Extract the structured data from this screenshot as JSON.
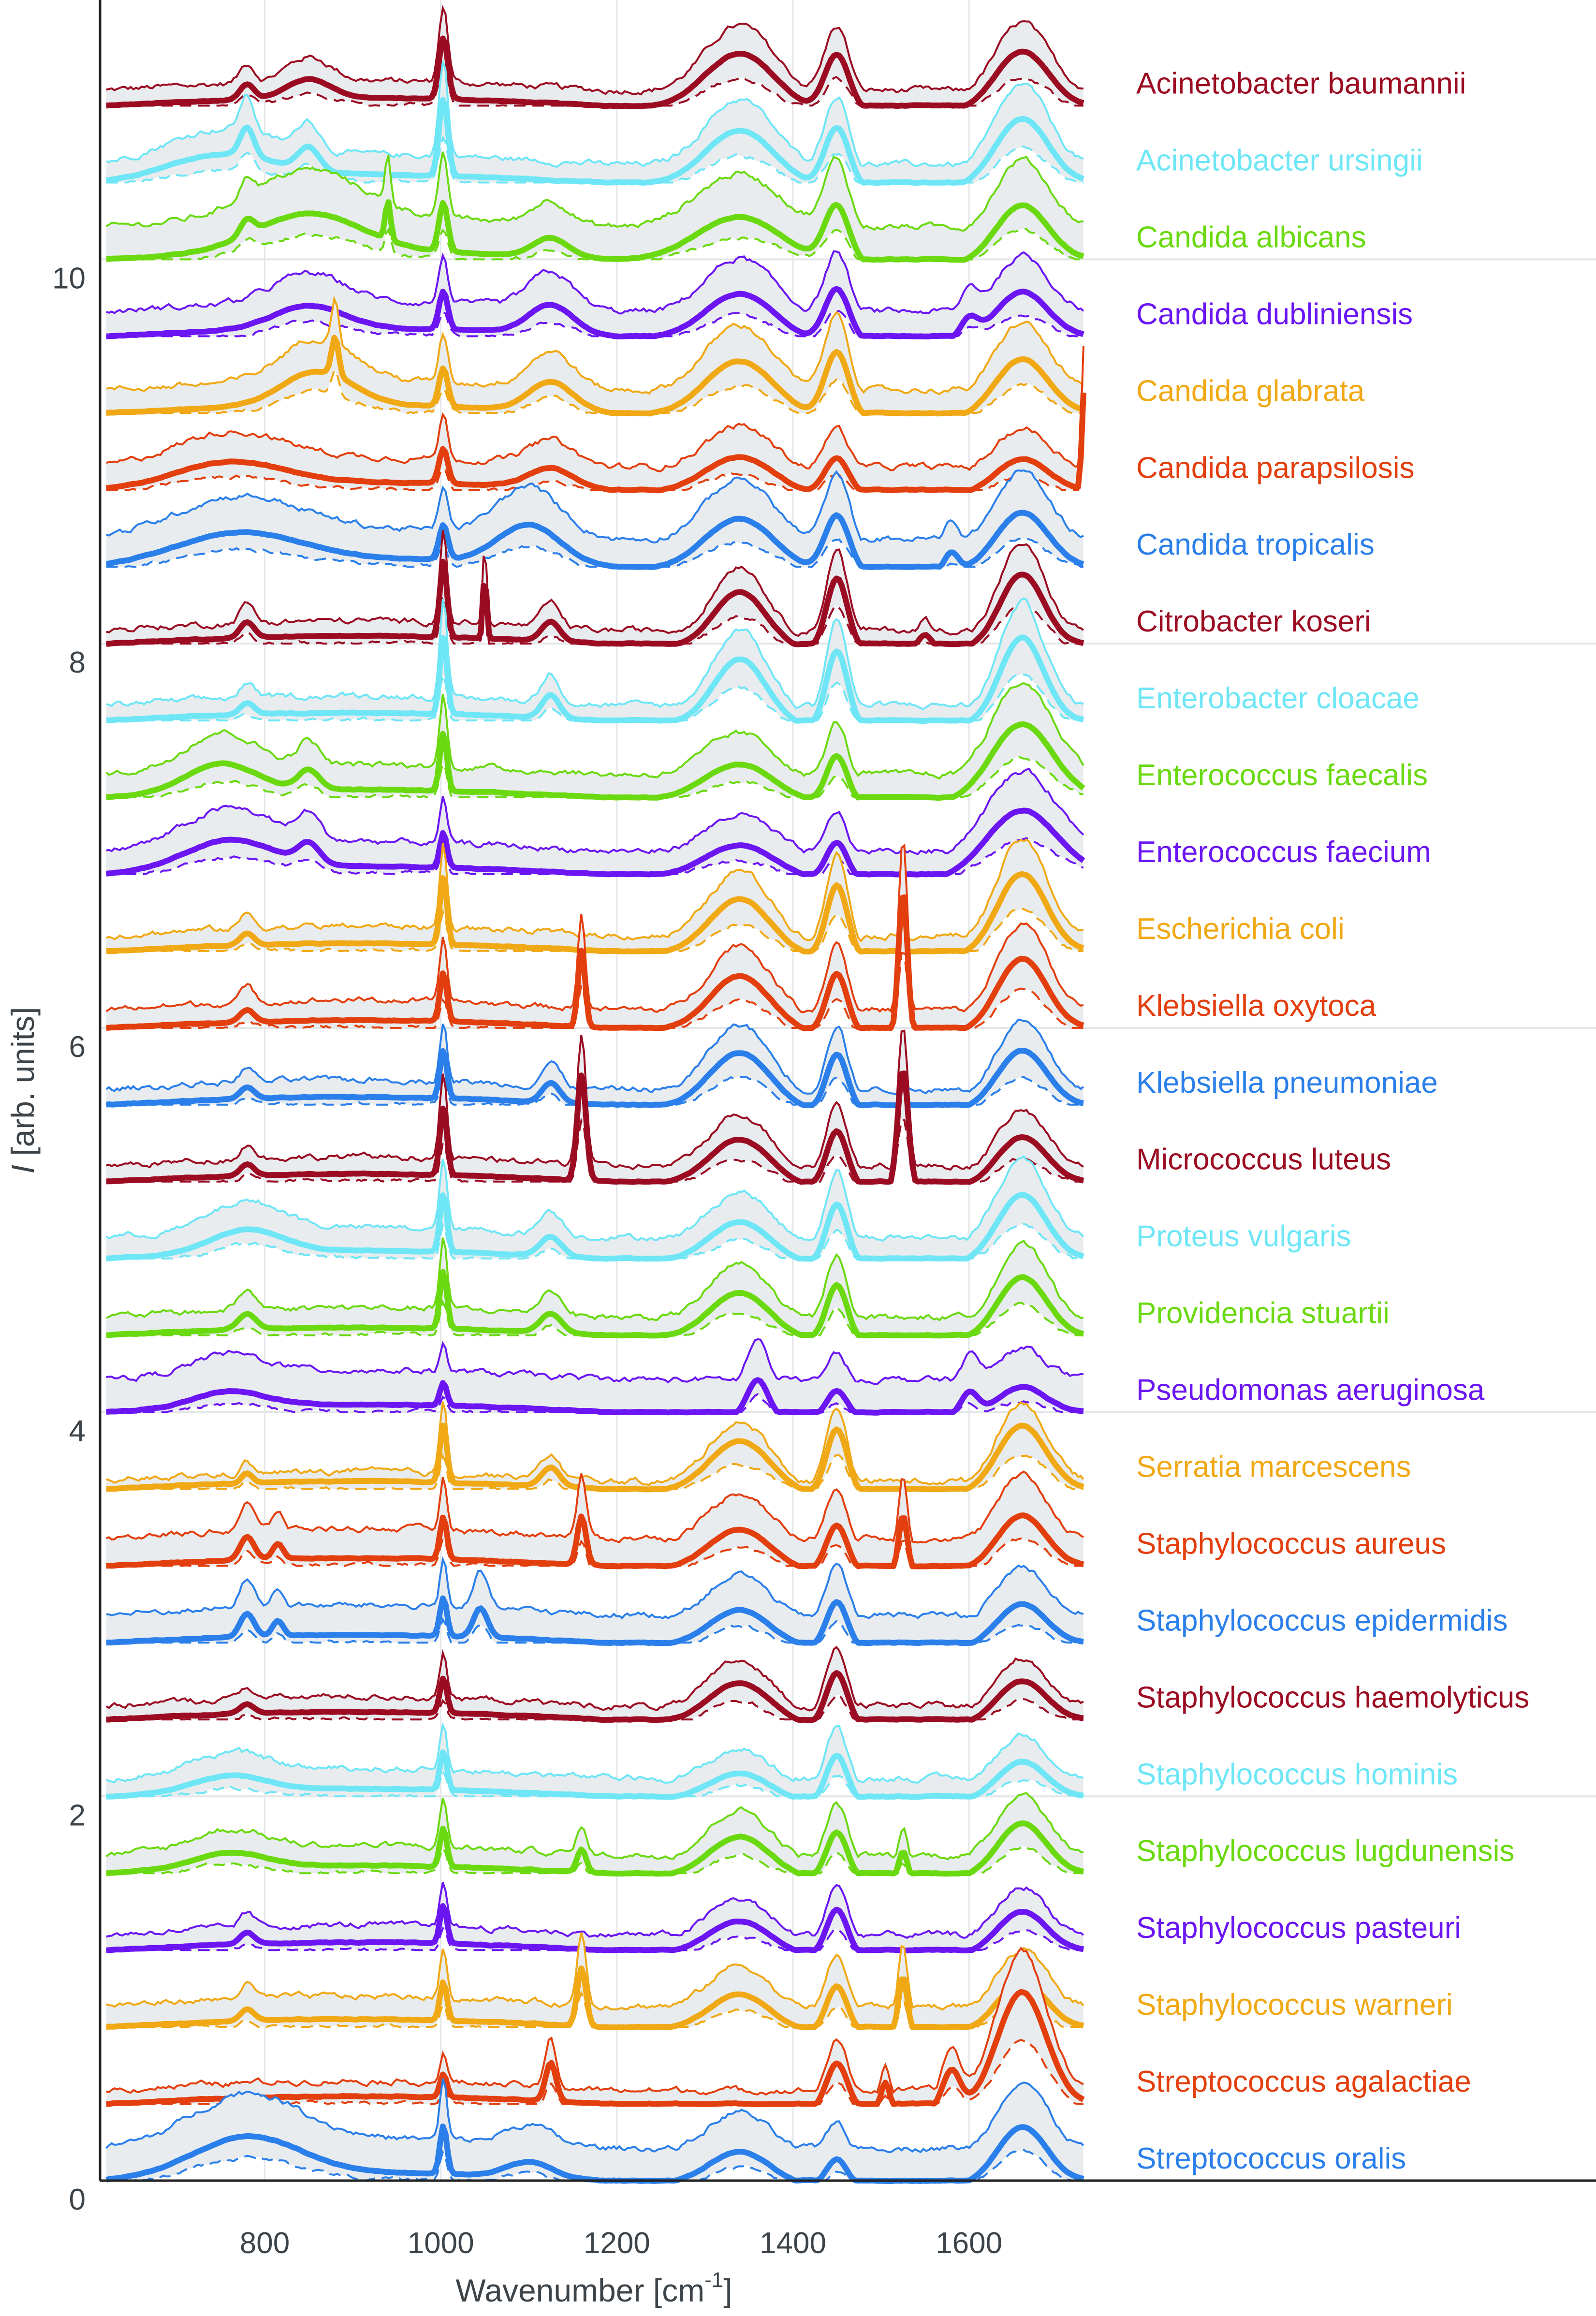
{
  "chart_data": {
    "type": "line",
    "title": "",
    "xlabel": "Wavenumber [cm",
    "xlabel_superscript": "-1",
    "xlabel_suffix": "]",
    "ylabel_italic": "I",
    "ylabel": " [arb. units]",
    "xlim": [
      613,
      1735
    ],
    "ylim": [
      0,
      11.35
    ],
    "xticks": [
      800,
      1000,
      1200,
      1400,
      1600
    ],
    "yticks": [
      0,
      2,
      4,
      6,
      8,
      10
    ],
    "grid": true,
    "legend_position": "right",
    "offset_step": 0.4,
    "band_fill": "#e9ecee",
    "description": "Stacked mean Raman spectra (thick line) with min/max envelope (thin lines, shaded) and lower bound (dashed) per species, vertically offset",
    "series": [
      {
        "name": "Acinetobacter baumannii",
        "color": "#9b0c22",
        "offset": 10.8,
        "spread": 0.12,
        "peaks": [
          [
            780,
            0.08,
            8
          ],
          [
            1003,
            0.32,
            5
          ],
          [
            1340,
            0.3,
            40
          ],
          [
            1450,
            0.3,
            14
          ],
          [
            1660,
            0.3,
            30
          ],
          [
            850,
            0.1,
            25
          ]
        ]
      },
      {
        "name": "Acinetobacter ursingii",
        "color": "#6ee6f6",
        "offset": 10.4,
        "spread": 0.15,
        "peaks": [
          [
            780,
            0.15,
            8
          ],
          [
            850,
            0.12,
            12
          ],
          [
            1003,
            0.4,
            5
          ],
          [
            1340,
            0.3,
            40
          ],
          [
            1450,
            0.32,
            14
          ],
          [
            1660,
            0.35,
            30
          ],
          [
            750,
            0.12,
            60
          ]
        ]
      },
      {
        "name": "Candida albicans",
        "color": "#6ad90f",
        "offset": 10.0,
        "spread": 0.3,
        "peaks": [
          [
            850,
            0.2,
            60
          ],
          [
            780,
            0.08,
            8
          ],
          [
            1003,
            0.25,
            5
          ],
          [
            1125,
            0.1,
            20
          ],
          [
            1340,
            0.25,
            50
          ],
          [
            1450,
            0.3,
            14
          ],
          [
            1660,
            0.3,
            30
          ],
          [
            940,
            0.2,
            3
          ]
        ]
      },
      {
        "name": "Candida dubliniensis",
        "color": "#6b16f2",
        "offset": 9.6,
        "spread": 0.22,
        "peaks": [
          [
            850,
            0.12,
            40
          ],
          [
            1003,
            0.2,
            5
          ],
          [
            1125,
            0.15,
            25
          ],
          [
            1340,
            0.25,
            40
          ],
          [
            1450,
            0.28,
            14
          ],
          [
            1660,
            0.25,
            30
          ],
          [
            1600,
            0.1,
            10
          ]
        ]
      },
      {
        "name": "Candida glabrata",
        "color": "#f0a814",
        "offset": 9.2,
        "spread": 0.2,
        "peaks": [
          [
            860,
            0.18,
            40
          ],
          [
            1003,
            0.2,
            5
          ],
          [
            1125,
            0.15,
            25
          ],
          [
            1340,
            0.3,
            40
          ],
          [
            1450,
            0.35,
            14
          ],
          [
            1660,
            0.3,
            30
          ],
          [
            880,
            0.2,
            4
          ]
        ]
      },
      {
        "name": "Candida parapsilosis",
        "color": "#e33e0e",
        "offset": 8.8,
        "spread": 0.2,
        "peaks": [
          [
            760,
            0.12,
            60
          ],
          [
            1003,
            0.18,
            5
          ],
          [
            1125,
            0.1,
            25
          ],
          [
            1340,
            0.2,
            40
          ],
          [
            1450,
            0.2,
            14
          ],
          [
            1660,
            0.18,
            30
          ],
          [
            1730,
            0.5,
            2
          ]
        ]
      },
      {
        "name": "Candida tropicalis",
        "color": "#2a7fea",
        "offset": 8.4,
        "spread": 0.25,
        "peaks": [
          [
            770,
            0.15,
            70
          ],
          [
            1003,
            0.18,
            5
          ],
          [
            1100,
            0.2,
            35
          ],
          [
            1340,
            0.28,
            40
          ],
          [
            1450,
            0.3,
            14
          ],
          [
            1660,
            0.3,
            30
          ],
          [
            1580,
            0.1,
            8
          ]
        ]
      },
      {
        "name": "Citrobacter koseri",
        "color": "#9b0c22",
        "offset": 8.0,
        "spread": 0.1,
        "peaks": [
          [
            780,
            0.08,
            8
          ],
          [
            1003,
            0.4,
            4
          ],
          [
            1050,
            0.35,
            2
          ],
          [
            1125,
            0.1,
            10
          ],
          [
            1340,
            0.3,
            30
          ],
          [
            1450,
            0.38,
            12
          ],
          [
            1660,
            0.38,
            25
          ],
          [
            1550,
            0.08,
            8
          ]
        ]
      },
      {
        "name": "Enterobacter cloacae",
        "color": "#6ee6f6",
        "offset": 7.6,
        "spread": 0.12,
        "peaks": [
          [
            780,
            0.06,
            8
          ],
          [
            1003,
            0.4,
            4
          ],
          [
            1125,
            0.12,
            10
          ],
          [
            1340,
            0.35,
            30
          ],
          [
            1450,
            0.4,
            12
          ],
          [
            1660,
            0.45,
            25
          ]
        ]
      },
      {
        "name": "Enterococcus faecalis",
        "color": "#6ad90f",
        "offset": 7.2,
        "spread": 0.2,
        "peaks": [
          [
            750,
            0.15,
            40
          ],
          [
            850,
            0.1,
            12
          ],
          [
            1003,
            0.3,
            4
          ],
          [
            1340,
            0.2,
            40
          ],
          [
            1450,
            0.25,
            12
          ],
          [
            1660,
            0.4,
            35
          ]
        ]
      },
      {
        "name": "Enterococcus faecium",
        "color": "#6b16f2",
        "offset": 6.8,
        "spread": 0.2,
        "peaks": [
          [
            760,
            0.15,
            50
          ],
          [
            850,
            0.1,
            12
          ],
          [
            1003,
            0.18,
            4
          ],
          [
            1340,
            0.18,
            40
          ],
          [
            1450,
            0.2,
            12
          ],
          [
            1660,
            0.35,
            40
          ]
        ]
      },
      {
        "name": "Escherichia coli",
        "color": "#f0a814",
        "offset": 6.4,
        "spread": 0.12,
        "peaks": [
          [
            780,
            0.06,
            8
          ],
          [
            1003,
            0.35,
            4
          ],
          [
            1340,
            0.3,
            35
          ],
          [
            1450,
            0.38,
            12
          ],
          [
            1660,
            0.42,
            28
          ]
        ]
      },
      {
        "name": "Klebsiella oxytoca",
        "color": "#e33e0e",
        "offset": 6.0,
        "spread": 0.15,
        "peaks": [
          [
            780,
            0.06,
            8
          ],
          [
            1003,
            0.25,
            4
          ],
          [
            1160,
            0.4,
            4
          ],
          [
            1340,
            0.3,
            35
          ],
          [
            1450,
            0.32,
            12
          ],
          [
            1525,
            0.75,
            5
          ],
          [
            1660,
            0.38,
            28
          ]
        ]
      },
      {
        "name": "Klebsiella pneumoniae",
        "color": "#2a7fea",
        "offset": 5.6,
        "spread": 0.12,
        "peaks": [
          [
            780,
            0.06,
            8
          ],
          [
            1003,
            0.25,
            4
          ],
          [
            1125,
            0.1,
            10
          ],
          [
            1340,
            0.3,
            35
          ],
          [
            1450,
            0.3,
            12
          ],
          [
            1660,
            0.3,
            28
          ]
        ]
      },
      {
        "name": "Micrococcus luteus",
        "color": "#9b0c22",
        "offset": 5.2,
        "spread": 0.12,
        "peaks": [
          [
            780,
            0.06,
            8
          ],
          [
            1003,
            0.35,
            4
          ],
          [
            1160,
            0.55,
            5
          ],
          [
            1340,
            0.25,
            35
          ],
          [
            1450,
            0.3,
            12
          ],
          [
            1525,
            0.62,
            6
          ],
          [
            1660,
            0.25,
            28
          ]
        ]
      },
      {
        "name": "Proteus vulgaris",
        "color": "#6ee6f6",
        "offset": 4.8,
        "spread": 0.18,
        "peaks": [
          [
            780,
            0.12,
            40
          ],
          [
            1003,
            0.3,
            4
          ],
          [
            1125,
            0.1,
            12
          ],
          [
            1340,
            0.22,
            35
          ],
          [
            1450,
            0.32,
            12
          ],
          [
            1660,
            0.35,
            28
          ]
        ]
      },
      {
        "name": "Providencia stuartii",
        "color": "#6ad90f",
        "offset": 4.4,
        "spread": 0.15,
        "peaks": [
          [
            780,
            0.08,
            10
          ],
          [
            1003,
            0.3,
            4
          ],
          [
            1125,
            0.1,
            12
          ],
          [
            1340,
            0.25,
            35
          ],
          [
            1450,
            0.3,
            12
          ],
          [
            1660,
            0.32,
            28
          ]
        ]
      },
      {
        "name": "Pseudomonas aeruginosa",
        "color": "#6b16f2",
        "offset": 4.0,
        "spread": 0.3,
        "peaks": [
          [
            760,
            0.08,
            40
          ],
          [
            1003,
            0.12,
            4
          ],
          [
            1360,
            0.2,
            12
          ],
          [
            1450,
            0.15,
            12
          ],
          [
            1600,
            0.12,
            10
          ],
          [
            1660,
            0.15,
            28
          ]
        ]
      },
      {
        "name": "Serratia marcescens",
        "color": "#f0a814",
        "offset": 3.6,
        "spread": 0.04,
        "peaks": [
          [
            780,
            0.05,
            6
          ],
          [
            1003,
            0.3,
            4
          ],
          [
            1125,
            0.1,
            10
          ],
          [
            1340,
            0.28,
            35
          ],
          [
            1450,
            0.35,
            12
          ],
          [
            1660,
            0.35,
            28
          ]
        ]
      },
      {
        "name": "Staphylococcus aureus",
        "color": "#e33e0e",
        "offset": 3.2,
        "spread": 0.25,
        "peaks": [
          [
            780,
            0.12,
            8
          ],
          [
            815,
            0.08,
            6
          ],
          [
            1003,
            0.22,
            4
          ],
          [
            1160,
            0.25,
            5
          ],
          [
            1340,
            0.22,
            35
          ],
          [
            1450,
            0.25,
            12
          ],
          [
            1525,
            0.3,
            5
          ],
          [
            1660,
            0.28,
            28
          ]
        ]
      },
      {
        "name": "Staphylococcus epidermidis",
        "color": "#2a7fea",
        "offset": 2.8,
        "spread": 0.25,
        "peaks": [
          [
            780,
            0.12,
            8
          ],
          [
            815,
            0.08,
            6
          ],
          [
            1003,
            0.2,
            4
          ],
          [
            1045,
            0.15,
            8
          ],
          [
            1340,
            0.2,
            35
          ],
          [
            1450,
            0.25,
            12
          ],
          [
            1660,
            0.22,
            28
          ]
        ]
      },
      {
        "name": "Staphylococcus haemolyticus",
        "color": "#9b0c22",
        "offset": 2.4,
        "spread": 0.1,
        "peaks": [
          [
            780,
            0.05,
            8
          ],
          [
            1003,
            0.18,
            4
          ],
          [
            1340,
            0.22,
            35
          ],
          [
            1450,
            0.28,
            12
          ],
          [
            1660,
            0.22,
            28
          ]
        ]
      },
      {
        "name": "Staphylococcus hominis",
        "color": "#6ee6f6",
        "offset": 2.0,
        "spread": 0.15,
        "peaks": [
          [
            760,
            0.08,
            40
          ],
          [
            1003,
            0.2,
            4
          ],
          [
            1340,
            0.15,
            35
          ],
          [
            1450,
            0.25,
            12
          ],
          [
            1660,
            0.2,
            28
          ]
        ]
      },
      {
        "name": "Staphylococcus lugdunensis",
        "color": "#6ad90f",
        "offset": 1.6,
        "spread": 0.15,
        "peaks": [
          [
            760,
            0.08,
            40
          ],
          [
            1003,
            0.2,
            4
          ],
          [
            1160,
            0.12,
            5
          ],
          [
            1340,
            0.22,
            35
          ],
          [
            1450,
            0.25,
            12
          ],
          [
            1525,
            0.15,
            5
          ],
          [
            1660,
            0.28,
            28
          ]
        ]
      },
      {
        "name": "Staphylococcus pasteuri",
        "color": "#6b16f2",
        "offset": 1.2,
        "spread": 0.12,
        "peaks": [
          [
            780,
            0.06,
            8
          ],
          [
            1003,
            0.2,
            4
          ],
          [
            1340,
            0.18,
            35
          ],
          [
            1450,
            0.25,
            12
          ],
          [
            1660,
            0.22,
            28
          ]
        ]
      },
      {
        "name": "Staphylococcus warneri",
        "color": "#f0a814",
        "offset": 0.8,
        "spread": 0.18,
        "peaks": [
          [
            780,
            0.06,
            8
          ],
          [
            1003,
            0.2,
            4
          ],
          [
            1160,
            0.3,
            5
          ],
          [
            1340,
            0.2,
            35
          ],
          [
            1450,
            0.25,
            12
          ],
          [
            1525,
            0.3,
            5
          ],
          [
            1660,
            0.25,
            28
          ]
        ]
      },
      {
        "name": "Streptococcus agalactiae",
        "color": "#e33e0e",
        "offset": 0.4,
        "spread": 0.1,
        "peaks": [
          [
            1003,
            0.12,
            4
          ],
          [
            1125,
            0.2,
            6
          ],
          [
            1450,
            0.25,
            12
          ],
          [
            1505,
            0.15,
            5
          ],
          [
            1580,
            0.2,
            10
          ],
          [
            1660,
            0.6,
            28
          ]
        ]
      },
      {
        "name": "Streptococcus oralis",
        "color": "#2a7fea",
        "offset": 0.0,
        "spread": 0.3,
        "peaks": [
          [
            780,
            0.2,
            60
          ],
          [
            1003,
            0.25,
            4
          ],
          [
            1100,
            0.08,
            25
          ],
          [
            1340,
            0.18,
            35
          ],
          [
            1450,
            0.15,
            12
          ],
          [
            1660,
            0.3,
            28
          ]
        ]
      }
    ]
  }
}
